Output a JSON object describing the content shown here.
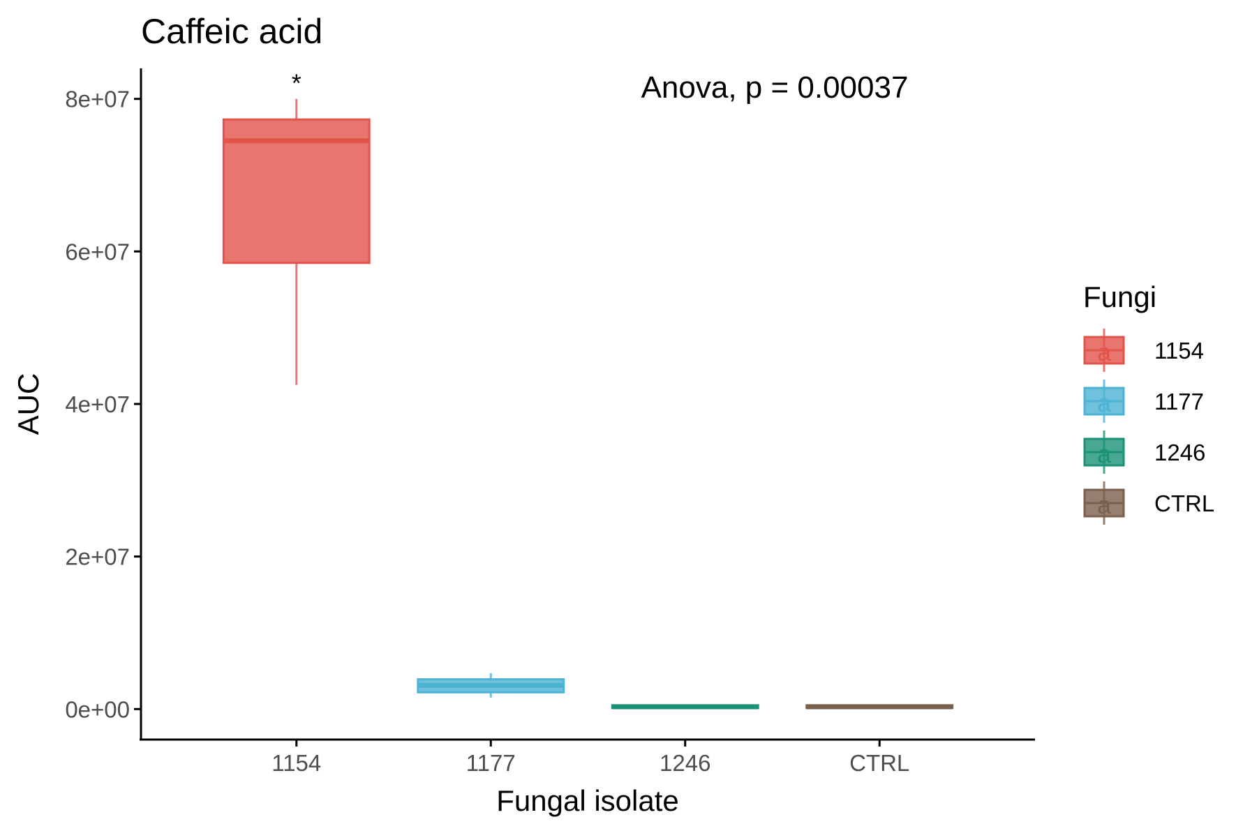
{
  "chart_data": {
    "type": "box",
    "title": "Caffeic acid",
    "xlabel": "Fungal isolate",
    "ylabel": "AUC",
    "categories": [
      "1154",
      "1177",
      "1246",
      "CTRL"
    ],
    "ylim": [
      -4000000,
      84000000
    ],
    "yticks": [
      0,
      20000000,
      40000000,
      60000000,
      80000000
    ],
    "ytick_labels": [
      "0e+00",
      "2e+07",
      "4e+07",
      "6e+07",
      "8e+07"
    ],
    "boxes": [
      {
        "category": "1154",
        "min": 42500000,
        "q1": 58500000,
        "median": 74500000,
        "q3": 77300000,
        "max": 80000000,
        "color": "#e2544b"
      },
      {
        "category": "1177",
        "min": 1500000,
        "q1": 2200000,
        "median": 3100000,
        "q3": 3900000,
        "max": 4700000,
        "color": "#4cb3d3"
      },
      {
        "category": "1246",
        "min": 100000,
        "q1": 150000,
        "median": 300000,
        "q3": 500000,
        "max": 550000,
        "color": "#1b9277"
      },
      {
        "category": "CTRL",
        "min": 100000,
        "q1": 150000,
        "median": 300000,
        "q3": 500000,
        "max": 550000,
        "color": "#7a5f4c"
      }
    ],
    "annotations": {
      "test_text": "Anova, p = 0.00037",
      "significance": [
        {
          "category": "1154",
          "label": "*"
        }
      ]
    },
    "legend": {
      "title": "Fungi",
      "position": "right",
      "key_glyph": "a",
      "entries": [
        "1154",
        "1177",
        "1246",
        "CTRL"
      ]
    },
    "grid": false
  }
}
